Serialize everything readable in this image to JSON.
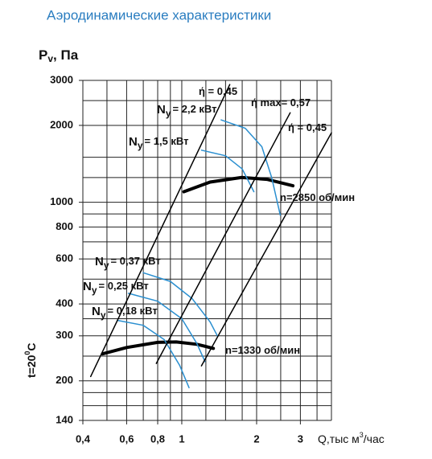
{
  "chart_data": {
    "type": "line",
    "title": "Аэродинамические характеристики",
    "y_label": {
      "main": "P",
      "sub": "v",
      "unit": ", Па"
    },
    "x_label": {
      "main": "Q,тыс м",
      "sup": "3",
      "unit": "/час"
    },
    "temperature": {
      "main": "t=20",
      "sup": "0",
      "unit": "C"
    },
    "log_x": true,
    "log_y": true,
    "grid": true,
    "xlim": [
      0.4,
      4
    ],
    "ylim": [
      140,
      3000
    ],
    "xticks": [
      {
        "value": 0.4,
        "label": "0,4"
      },
      {
        "value": 0.6,
        "label": "0,6"
      },
      {
        "value": 0.8,
        "label": "0,8"
      },
      1,
      2,
      3
    ],
    "yticks": [
      140,
      200,
      300,
      400,
      600,
      800,
      1000,
      2000,
      3000
    ],
    "xgrid": [
      0.4,
      0.5,
      0.6,
      0.7,
      0.8,
      0.9,
      1,
      1.25,
      1.5,
      1.75,
      2,
      2.5,
      3,
      3.5,
      4
    ],
    "ygrid": [
      140,
      160,
      180,
      200,
      250,
      300,
      350,
      400,
      500,
      600,
      700,
      800,
      900,
      1000,
      1250,
      1500,
      2000,
      2500,
      3000
    ],
    "series": [
      {
        "color": "#000000",
        "width": 4,
        "x": [
          1.02,
          1.3,
          1.74,
          2.2,
          2.8
        ],
        "values": [
          1100,
          1200,
          1250,
          1230,
          1160
        ]
      },
      {
        "color": "#000000",
        "width": 4,
        "x": [
          0.48,
          0.6,
          0.8,
          0.95,
          1.15,
          1.34
        ],
        "values": [
          255,
          270,
          283,
          284,
          278,
          268
        ]
      },
      {
        "color": "#2a8fd0",
        "width": 1.5,
        "x": [
          1.44,
          1.8,
          2.1,
          2.3,
          2.49
        ],
        "values": [
          2100,
          1950,
          1650,
          1250,
          890
        ]
      },
      {
        "color": "#2a8fd0",
        "width": 1.5,
        "x": [
          1.2,
          1.5,
          1.75,
          1.95
        ],
        "values": [
          1600,
          1520,
          1350,
          1100
        ]
      },
      {
        "color": "#2a8fd0",
        "width": 1.5,
        "x": [
          0.7,
          0.9,
          1.1,
          1.3,
          1.39
        ],
        "values": [
          530,
          490,
          420,
          340,
          300
        ]
      },
      {
        "color": "#2a8fd0",
        "width": 1.5,
        "x": [
          0.61,
          0.8,
          1.0,
          1.15,
          1.24
        ],
        "values": [
          440,
          410,
          350,
          280,
          238
        ]
      },
      {
        "color": "#2a8fd0",
        "width": 1.5,
        "x": [
          0.55,
          0.7,
          0.85,
          0.98,
          1.07
        ],
        "values": [
          345,
          330,
          290,
          230,
          188
        ]
      },
      {
        "color": "#000000",
        "width": 1.5,
        "x": [
          0.43,
          1.56
        ],
        "values": [
          208,
          2890
        ]
      },
      {
        "color": "#000000",
        "width": 1.5,
        "x": [
          0.79,
          2.73
        ],
        "values": [
          234,
          2240
        ]
      },
      {
        "color": "#000000",
        "width": 1.5,
        "x": [
          1.2,
          4.0
        ],
        "values": [
          229,
          1870
        ]
      }
    ],
    "annotations": [
      {
        "text": "ή = 0,45"
      },
      {
        "main": "N",
        "sub": "y",
        "text": "= 2,2 кВт"
      },
      {
        "text": "ή max= 0,57"
      },
      {
        "text": "ή = 0,45"
      },
      {
        "main": "N",
        "sub": "y",
        "text": "= 1,5 кВт"
      },
      {
        "text": "n=2850 об/мин"
      },
      {
        "main": "N",
        "sub": "y",
        "text": "= 0,37 кВт"
      },
      {
        "main": "N",
        "sub": "y",
        "text": "= 0,25 кВт"
      },
      {
        "main": "N",
        "sub": "y",
        "text": "= 0,18 кВт"
      },
      {
        "text": "n=1330 об/мин"
      }
    ]
  }
}
